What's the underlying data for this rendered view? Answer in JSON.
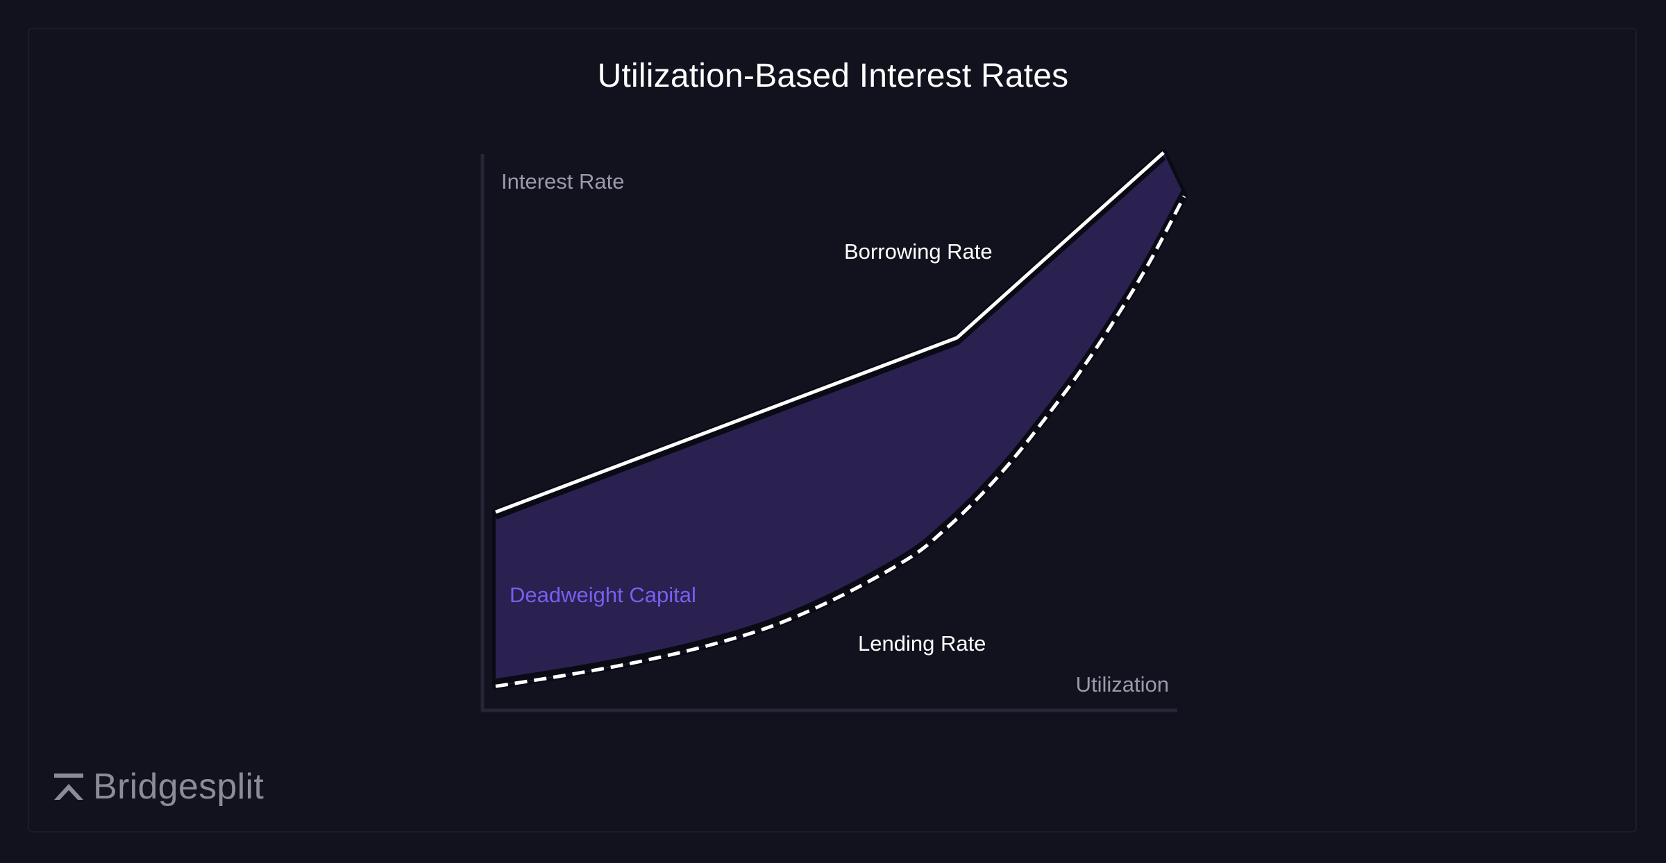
{
  "brand": {
    "name": "Bridgesplit",
    "icon": "bridgesplit-logo-icon",
    "color": "#8c8c99"
  },
  "chart_data": {
    "type": "area",
    "title": "Utilization-Based Interest Rates",
    "xlabel": "Utilization",
    "ylabel": "Interest Rate",
    "xlim": [
      0,
      100
    ],
    "ylim": [
      0,
      100
    ],
    "grid": false,
    "legend": "none",
    "series": [
      {
        "name": "Borrowing Rate",
        "style": "solid",
        "color": "#ffffff",
        "x": [
          0,
          67,
          97
        ],
        "y": [
          34,
          66,
          100
        ]
      },
      {
        "name": "Lending Rate",
        "style": "dashed",
        "color": "#ffffff",
        "x": [
          0,
          10,
          20,
          30,
          40,
          50,
          60,
          65,
          70,
          75,
          80,
          85,
          90,
          95,
          100
        ],
        "y": [
          2,
          4,
          6.3,
          9.2,
          13,
          18.5,
          25.5,
          30.5,
          36.5,
          43.5,
          51.5,
          60,
          69.5,
          80,
          92
        ]
      }
    ],
    "fill": {
      "label": "Deadweight Capital",
      "between": [
        "Borrowing Rate",
        "Lending Rate"
      ],
      "color": "#2a2150",
      "label_color": "#7b5ef0"
    }
  }
}
